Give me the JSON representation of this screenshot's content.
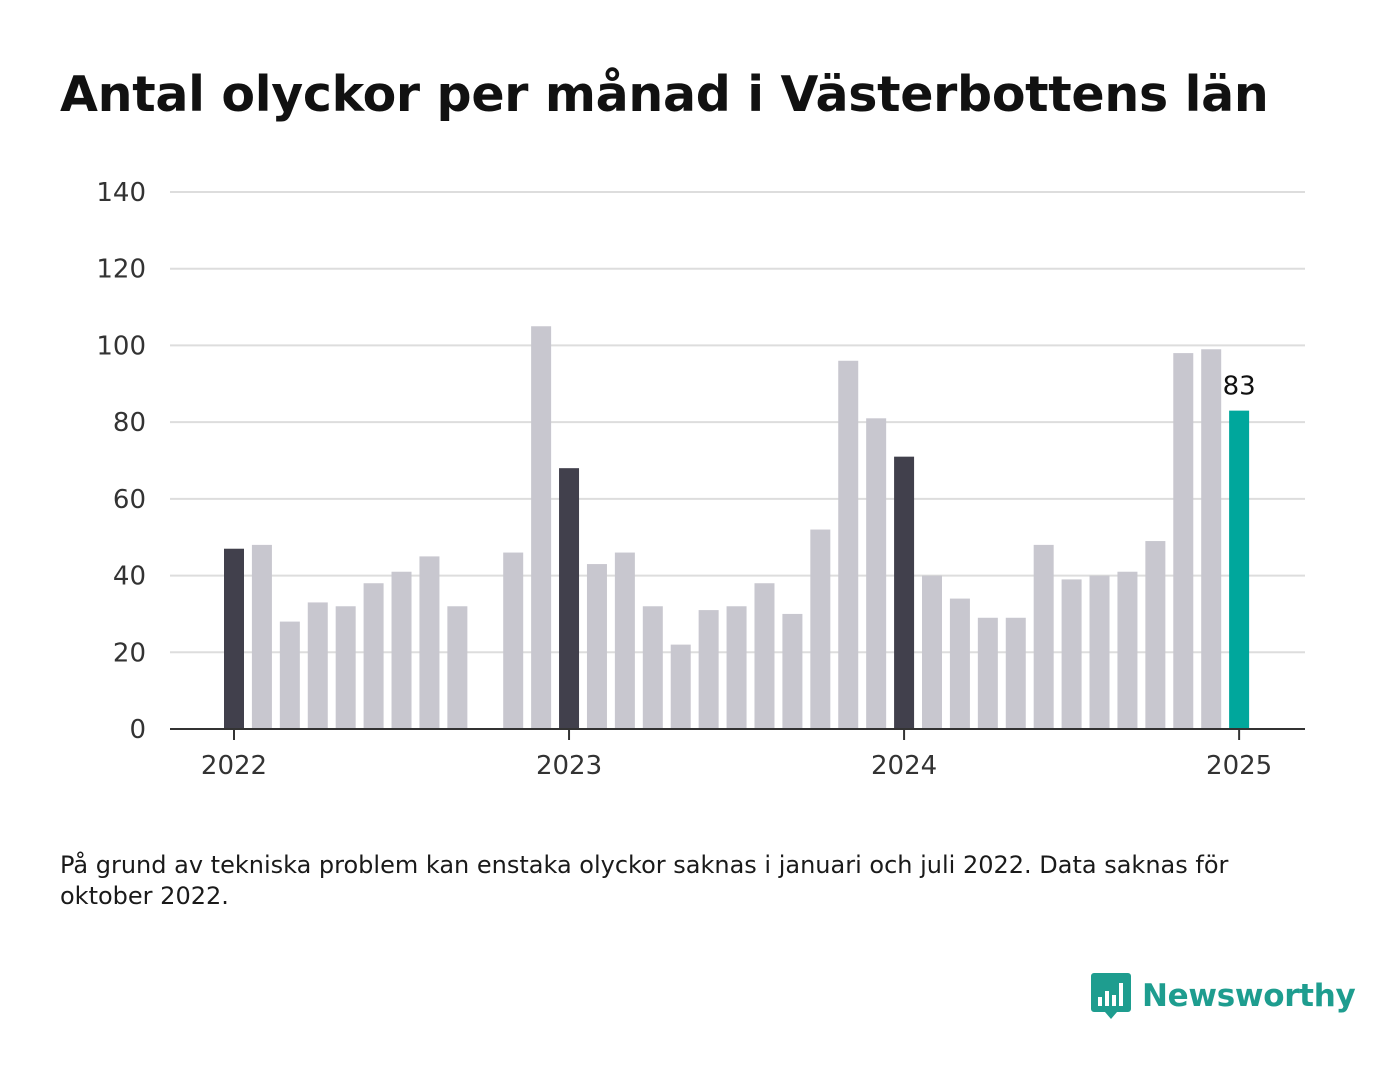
{
  "title": "Antal olyckor per månad i Västerbottens län",
  "note": "På grund av tekniska problem kan enstaka olyckor saknas i januari och juli 2022. Data saknas för oktober 2022.",
  "brand": {
    "name": "Newsworthy",
    "icon": "newsworthy-logo-icon",
    "color": "#1e9d8f"
  },
  "colors": {
    "regular": "#c8c7cf",
    "january": "#41404c",
    "latest": "#00a79c",
    "grid": "#dddddd",
    "axis": "#333333"
  },
  "chart_data": {
    "type": "bar",
    "title": "Antal olyckor per månad i Västerbottens län",
    "xlabel": "",
    "ylabel": "",
    "ylim": [
      0,
      140
    ],
    "yticks": [
      0,
      20,
      40,
      60,
      80,
      100,
      120,
      140
    ],
    "xticks": [
      "2022",
      "2023",
      "2024",
      "2025"
    ],
    "grid": true,
    "legend": "none",
    "categories": [
      "2022-01",
      "2022-02",
      "2022-03",
      "2022-04",
      "2022-05",
      "2022-06",
      "2022-07",
      "2022-08",
      "2022-09",
      "2022-10",
      "2022-11",
      "2022-12",
      "2023-01",
      "2023-02",
      "2023-03",
      "2023-04",
      "2023-05",
      "2023-06",
      "2023-07",
      "2023-08",
      "2023-09",
      "2023-10",
      "2023-11",
      "2023-12",
      "2024-01",
      "2024-02",
      "2024-03",
      "2024-04",
      "2024-05",
      "2024-06",
      "2024-07",
      "2024-08",
      "2024-09",
      "2024-10",
      "2024-11",
      "2024-12",
      "2025-01"
    ],
    "values": [
      47,
      48,
      28,
      33,
      32,
      38,
      41,
      45,
      32,
      null,
      46,
      105,
      68,
      43,
      46,
      32,
      22,
      31,
      32,
      38,
      30,
      52,
      96,
      81,
      71,
      40,
      34,
      29,
      29,
      48,
      39,
      40,
      41,
      49,
      98,
      99,
      83
    ],
    "highlighted": {
      "january": [
        "2022-01",
        "2023-01",
        "2024-01"
      ],
      "latest": "2025-01"
    },
    "data_labels": [
      {
        "category": "2025-01",
        "text": "83"
      }
    ]
  }
}
